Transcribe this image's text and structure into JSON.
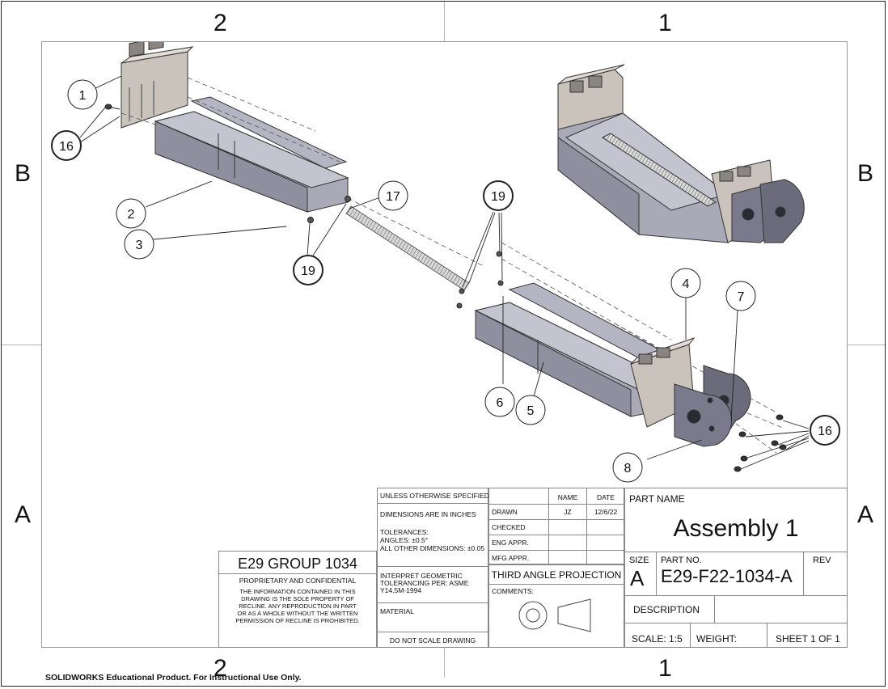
{
  "zones": {
    "top": [
      "2",
      "1"
    ],
    "bottom": [
      "2",
      "1"
    ],
    "left": [
      "B",
      "A"
    ],
    "right": [
      "B",
      "A"
    ]
  },
  "balloons": [
    {
      "id": "b1",
      "label": "1"
    },
    {
      "id": "b16a",
      "label": "16"
    },
    {
      "id": "b2",
      "label": "2"
    },
    {
      "id": "b3",
      "label": "3"
    },
    {
      "id": "b17",
      "label": "17"
    },
    {
      "id": "b19a",
      "label": "19"
    },
    {
      "id": "b19b",
      "label": "19"
    },
    {
      "id": "b4",
      "label": "4"
    },
    {
      "id": "b7",
      "label": "7"
    },
    {
      "id": "b6",
      "label": "6"
    },
    {
      "id": "b5",
      "label": "5"
    },
    {
      "id": "b16b",
      "label": "16"
    },
    {
      "id": "b8",
      "label": "8"
    }
  ],
  "title_block": {
    "unless": "UNLESS OTHERWISE SPECIFIED:",
    "dims": "DIMENSIONS ARE IN INCHES",
    "tol1": "TOLERANCES:",
    "tol2": "ANGLES: ±0.5°",
    "tol3": "ALL OTHER DIMENSIONS: ±0.05",
    "interp1": "INTERPRET GEOMETRIC",
    "interp2": "TOLERANCING PER: ASME",
    "interp3": "Y14.5M-1994",
    "material": "MATERIAL",
    "noscale": "DO NOT SCALE DRAWING",
    "name_hdr": "NAME",
    "date_hdr": "DATE",
    "drawn": "DRAWN",
    "drawn_name": "JZ",
    "drawn_date": "12/6/22",
    "checked": "CHECKED",
    "eng": "ENG APPR.",
    "mfg": "MFG APPR.",
    "projection": "THIRD ANGLE PROJECTION",
    "comments": "COMMENTS:",
    "part_name_label": "PART NAME",
    "part_name": "Assembly 1",
    "size_label": "SIZE",
    "size": "A",
    "partno_label": "PART NO.",
    "partno": "E29-F22-1034-A",
    "rev_label": "REV",
    "description": "DESCRIPTION",
    "scale": "SCALE: 1:5",
    "weight": "WEIGHT:",
    "sheet": "SHEET 1 OF 1",
    "group": "E29 GROUP 1034",
    "prop_title": "PROPRIETARY AND CONFIDENTIAL",
    "prop1": "THE INFORMATION CONTAINED IN THIS",
    "prop2": "DRAWING IS THE SOLE PROPERTY OF",
    "prop3": "RECLINE.  ANY REPRODUCTION IN PART",
    "prop4": "OR AS A WHOLE WITHOUT THE WRITTEN",
    "prop5": "PERMISSION OF RECLINE IS PROHIBITED."
  },
  "watermark": "SOLIDWORKS Educational Product. For Instructional Use Only."
}
